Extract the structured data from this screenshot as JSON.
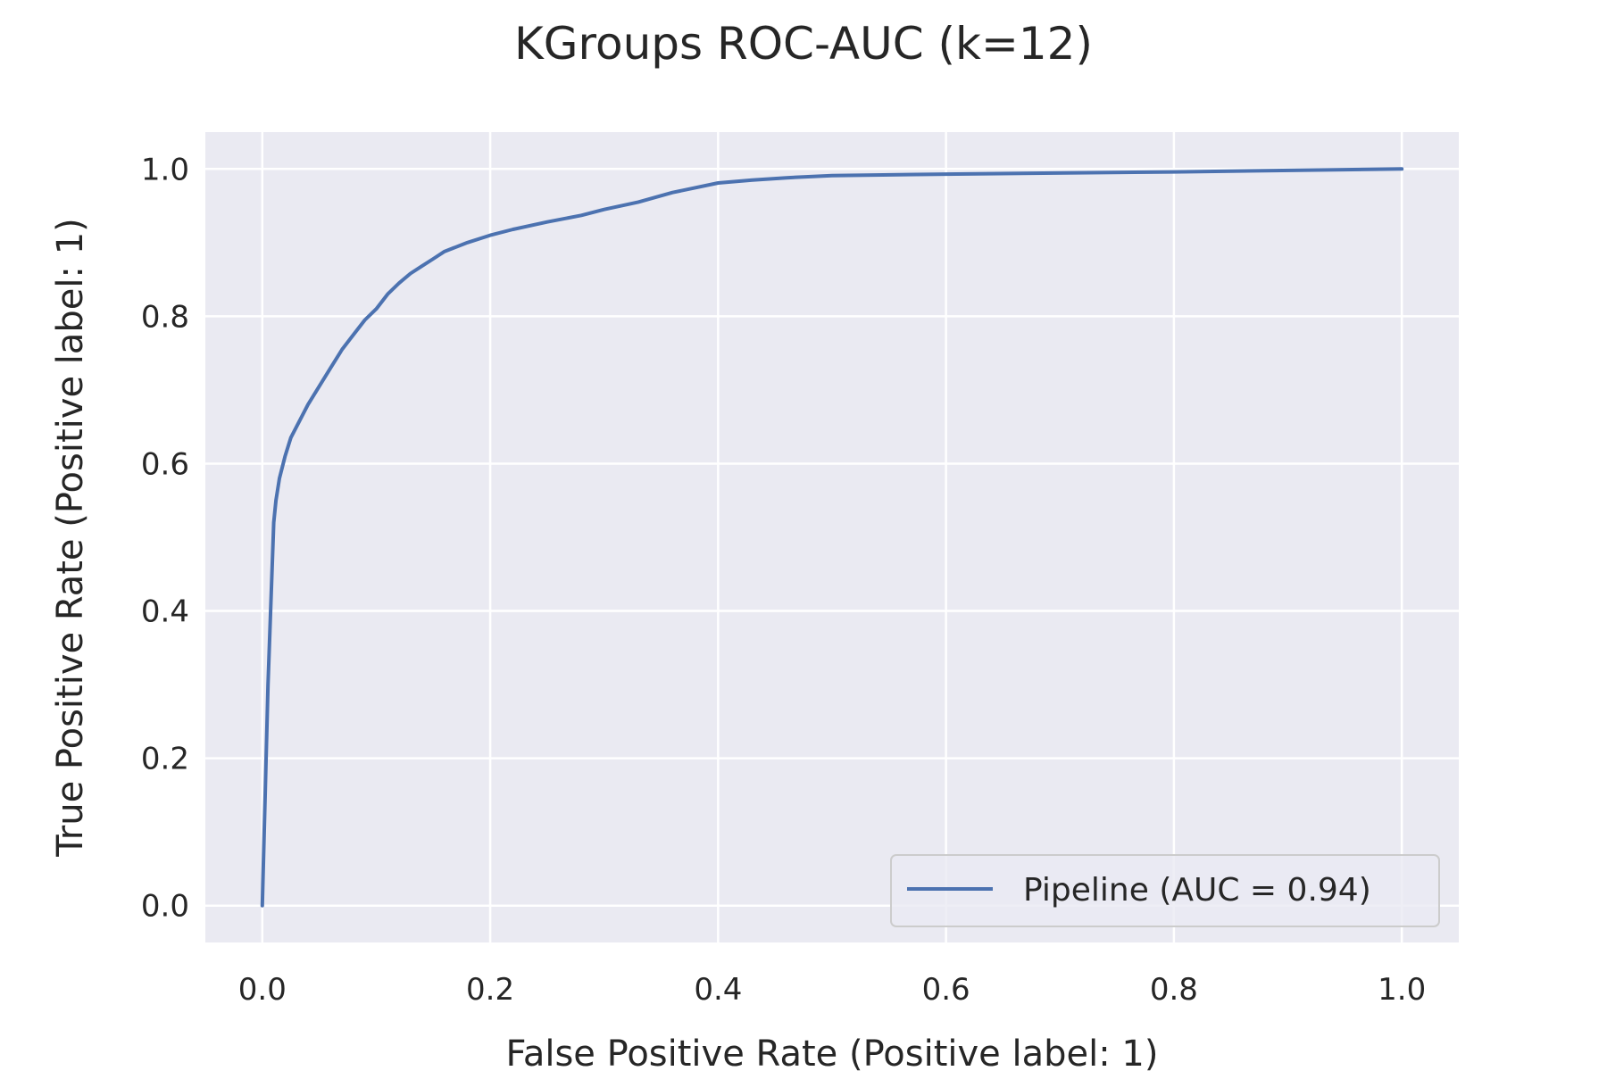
{
  "chart_data": {
    "type": "line",
    "title": "KGroups ROC-AUC (k=12)",
    "xlabel": "False Positive Rate (Positive label: 1)",
    "ylabel": "True Positive Rate (Positive label: 1)",
    "xlim": [
      -0.05,
      1.05
    ],
    "ylim": [
      -0.05,
      1.05
    ],
    "x_ticks": [
      0.0,
      0.2,
      0.4,
      0.6,
      0.8,
      1.0
    ],
    "x_tick_labels": [
      "0.0",
      "0.2",
      "0.4",
      "0.6",
      "0.8",
      "1.0"
    ],
    "y_ticks": [
      0.0,
      0.2,
      0.4,
      0.6,
      0.8,
      1.0
    ],
    "y_tick_labels": [
      "0.0",
      "0.2",
      "0.4",
      "0.6",
      "0.8",
      "1.0"
    ],
    "grid": true,
    "legend_position": "bottom-right",
    "plot_background": "#eaeaf2",
    "grid_color": "#ffffff",
    "series": [
      {
        "name": "Pipeline (AUC = 0.94)",
        "color": "#4c72b0",
        "x": [
          0.0,
          0.005,
          0.01,
          0.012,
          0.015,
          0.02,
          0.025,
          0.03,
          0.035,
          0.04,
          0.05,
          0.06,
          0.07,
          0.08,
          0.09,
          0.1,
          0.11,
          0.12,
          0.13,
          0.14,
          0.15,
          0.16,
          0.18,
          0.2,
          0.22,
          0.25,
          0.28,
          0.3,
          0.33,
          0.36,
          0.4,
          0.43,
          0.46,
          0.5,
          0.6,
          0.8,
          1.0
        ],
        "y": [
          0.0,
          0.3,
          0.52,
          0.55,
          0.58,
          0.61,
          0.635,
          0.65,
          0.665,
          0.68,
          0.705,
          0.73,
          0.755,
          0.775,
          0.795,
          0.81,
          0.83,
          0.845,
          0.858,
          0.868,
          0.878,
          0.888,
          0.9,
          0.91,
          0.918,
          0.928,
          0.937,
          0.945,
          0.955,
          0.968,
          0.981,
          0.985,
          0.988,
          0.991,
          0.993,
          0.996,
          1.0
        ]
      }
    ]
  }
}
